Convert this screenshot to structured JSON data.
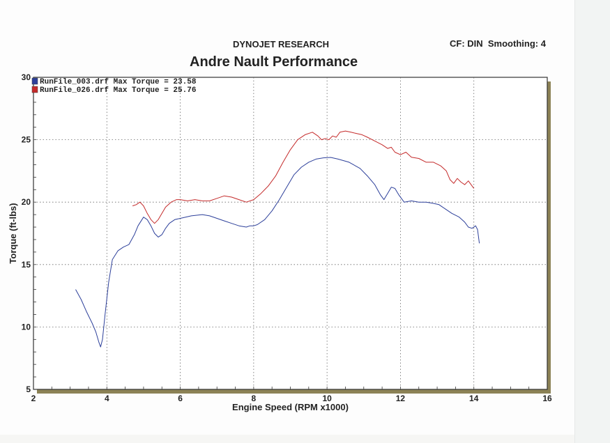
{
  "header": {
    "company": "DYNOJET RESEARCH",
    "title": "Andre Nault Performance",
    "settings": "CF: DIN  Smoothing: 4"
  },
  "chart_data": {
    "type": "line",
    "title": "Andre Nault Performance",
    "xlabel": "Engine Speed (RPM x1000)",
    "ylabel": "Torque (ft-lbs)",
    "xlim": [
      2,
      16
    ],
    "ylim": [
      5,
      30
    ],
    "xticks": [
      2,
      4,
      6,
      8,
      10,
      12,
      14,
      16
    ],
    "yticks": [
      5,
      10,
      15,
      20,
      25,
      30
    ],
    "grid": true,
    "legend_position": "top-left",
    "series": [
      {
        "name": "RunFile_003.drf Max Torque = 23.58",
        "color": "#2c3f9a",
        "x": [
          3.15,
          3.3,
          3.45,
          3.6,
          3.7,
          3.78,
          3.83,
          3.88,
          3.95,
          4.05,
          4.15,
          4.3,
          4.45,
          4.6,
          4.75,
          4.85,
          5.0,
          5.1,
          5.2,
          5.3,
          5.4,
          5.5,
          5.6,
          5.7,
          5.85,
          6.0,
          6.3,
          6.6,
          6.8,
          7.0,
          7.2,
          7.4,
          7.6,
          7.8,
          7.9,
          8.0,
          8.1,
          8.3,
          8.5,
          8.7,
          8.9,
          9.1,
          9.3,
          9.5,
          9.7,
          9.9,
          10.1,
          10.3,
          10.6,
          10.9,
          11.1,
          11.3,
          11.45,
          11.55,
          11.65,
          11.75,
          11.85,
          11.95,
          12.1,
          12.3,
          12.5,
          12.7,
          12.9,
          13.05,
          13.2,
          13.4,
          13.6,
          13.75,
          13.85,
          13.95,
          14.05,
          14.1,
          14.15
        ],
        "values": [
          13.0,
          12.2,
          11.2,
          10.3,
          9.6,
          8.8,
          8.4,
          9.0,
          11.0,
          13.6,
          15.4,
          16.1,
          16.4,
          16.6,
          17.4,
          18.1,
          18.8,
          18.6,
          18.1,
          17.5,
          17.2,
          17.4,
          17.9,
          18.3,
          18.6,
          18.7,
          18.9,
          19.0,
          18.9,
          18.7,
          18.5,
          18.3,
          18.1,
          18.0,
          18.1,
          18.1,
          18.2,
          18.6,
          19.3,
          20.2,
          21.2,
          22.2,
          22.8,
          23.2,
          23.45,
          23.55,
          23.58,
          23.45,
          23.2,
          22.7,
          22.1,
          21.4,
          20.6,
          20.2,
          20.7,
          21.2,
          21.1,
          20.6,
          20.0,
          20.1,
          20.0,
          20.0,
          19.9,
          19.8,
          19.5,
          19.1,
          18.8,
          18.4,
          18.0,
          17.9,
          18.1,
          17.8,
          16.7
        ]
      },
      {
        "name": "RunFile_026.drf Max Torque = 25.76",
        "color": "#c42a2a",
        "x": [
          4.7,
          4.8,
          4.9,
          5.0,
          5.1,
          5.2,
          5.3,
          5.4,
          5.5,
          5.6,
          5.75,
          5.9,
          6.0,
          6.2,
          6.4,
          6.6,
          6.8,
          7.0,
          7.2,
          7.4,
          7.6,
          7.8,
          8.0,
          8.2,
          8.4,
          8.6,
          8.8,
          9.0,
          9.2,
          9.4,
          9.6,
          9.75,
          9.85,
          9.95,
          10.05,
          10.15,
          10.25,
          10.35,
          10.5,
          10.65,
          10.8,
          10.95,
          11.1,
          11.3,
          11.5,
          11.65,
          11.75,
          11.85,
          12.0,
          12.15,
          12.3,
          12.5,
          12.7,
          12.9,
          13.1,
          13.25,
          13.35,
          13.45,
          13.55,
          13.65,
          13.75,
          13.85,
          13.95,
          14.0
        ],
        "values": [
          19.7,
          19.8,
          20.0,
          19.7,
          19.1,
          18.6,
          18.3,
          18.6,
          19.1,
          19.6,
          20.0,
          20.2,
          20.2,
          20.1,
          20.2,
          20.1,
          20.1,
          20.3,
          20.5,
          20.4,
          20.2,
          20.0,
          20.2,
          20.7,
          21.3,
          22.1,
          23.2,
          24.2,
          25.0,
          25.4,
          25.6,
          25.3,
          25.0,
          25.1,
          25.0,
          25.3,
          25.2,
          25.6,
          25.7,
          25.6,
          25.5,
          25.4,
          25.2,
          24.9,
          24.6,
          24.3,
          24.4,
          24.0,
          23.8,
          24.0,
          23.6,
          23.5,
          23.2,
          23.2,
          22.9,
          22.5,
          21.8,
          21.5,
          21.9,
          21.6,
          21.4,
          21.7,
          21.3,
          21.1
        ]
      }
    ]
  }
}
